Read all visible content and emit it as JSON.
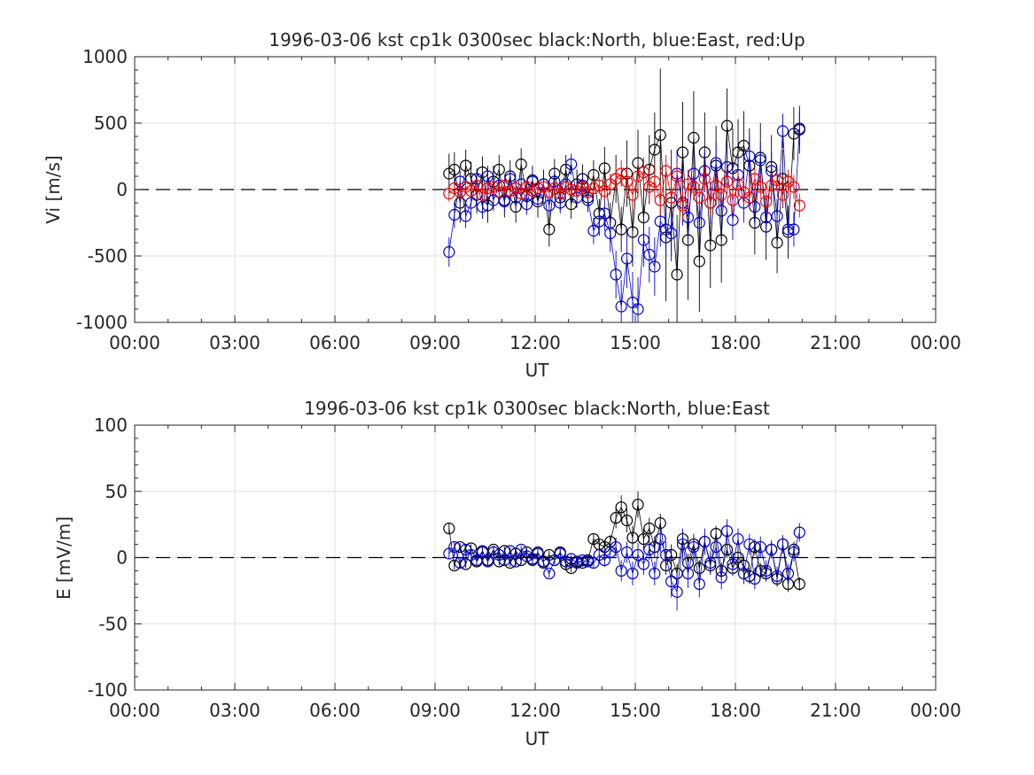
{
  "chart_data": [
    {
      "type": "scatter",
      "title": "1996-03-06 kst cp1k 0300sec black:North, blue:East, red:Up",
      "xlabel": "UT",
      "ylabel": "Vi [m/s]",
      "xlim_hours": [
        0,
        24
      ],
      "ylim": [
        -1000,
        1000
      ],
      "x_ticks": [
        "00:00",
        "03:00",
        "06:00",
        "09:00",
        "12:00",
        "15:00",
        "18:00",
        "21:00",
        "00:00"
      ],
      "y_ticks": [
        "1000",
        "500",
        "0",
        "-500",
        "-1000"
      ],
      "y_tick_values": [
        1000,
        500,
        0,
        -500,
        -1000
      ],
      "grid": true,
      "zero_line": "dashed",
      "series": [
        {
          "color": "#000000",
          "x": [
            9.42,
            9.58,
            9.75,
            9.92,
            10.08,
            10.25,
            10.42,
            10.58,
            10.75,
            10.92,
            11.08,
            11.25,
            11.42,
            11.58,
            11.75,
            11.92,
            12.08,
            12.25,
            12.42,
            12.58,
            12.75,
            12.92,
            13.08,
            13.25,
            13.42,
            13.58,
            13.75,
            13.92,
            14.08,
            14.25,
            14.42,
            14.58,
            14.75,
            14.92,
            15.08,
            15.25,
            15.42,
            15.58,
            15.75,
            15.92,
            16.08,
            16.25,
            16.42,
            16.58,
            16.75,
            16.92,
            17.08,
            17.25,
            17.42,
            17.58,
            17.75,
            17.92,
            18.08,
            18.25,
            18.42,
            18.58,
            18.75,
            18.92,
            19.08,
            19.25,
            19.42,
            19.58,
            19.75,
            19.92
          ],
          "y": [
            120,
            150,
            -100,
            180,
            80,
            -40,
            130,
            -120,
            60,
            150,
            -80,
            100,
            -130,
            190,
            -50,
            70,
            -90,
            40,
            -300,
            120,
            -60,
            150,
            -110,
            40,
            80,
            -60,
            110,
            -180,
            160,
            -250,
            80,
            -300,
            120,
            -320,
            200,
            -210,
            150,
            300,
            410,
            -360,
            -100,
            -640,
            280,
            -380,
            390,
            -540,
            280,
            -420,
            180,
            -380,
            480,
            160,
            280,
            330,
            180,
            -250,
            240,
            -280,
            170,
            -400,
            80,
            -320,
            420,
            450
          ],
          "err": [
            150,
            130,
            150,
            120,
            130,
            140,
            120,
            130,
            120,
            110,
            130,
            120,
            120,
            120,
            110,
            110,
            120,
            110,
            130,
            110,
            100,
            110,
            110,
            110,
            110,
            110,
            110,
            110,
            160,
            150,
            180,
            170,
            250,
            260,
            250,
            240,
            260,
            280,
            500,
            480,
            400,
            450,
            380,
            450,
            350,
            380,
            300,
            320,
            300,
            320,
            280,
            300,
            250,
            260,
            280,
            240,
            260,
            250,
            240,
            230,
            220,
            200,
            200,
            180
          ]
        },
        {
          "color": "#0000cc",
          "x": [
            9.42,
            9.58,
            9.75,
            9.92,
            10.08,
            10.25,
            10.42,
            10.58,
            10.75,
            10.92,
            11.08,
            11.25,
            11.42,
            11.58,
            11.75,
            11.92,
            12.08,
            12.25,
            12.42,
            12.58,
            12.75,
            12.92,
            13.08,
            13.25,
            13.42,
            13.58,
            13.75,
            13.92,
            14.08,
            14.25,
            14.42,
            14.58,
            14.75,
            14.92,
            15.08,
            15.25,
            15.42,
            15.58,
            15.75,
            15.92,
            16.08,
            16.25,
            16.42,
            16.58,
            16.75,
            16.92,
            17.08,
            17.25,
            17.42,
            17.58,
            17.75,
            17.92,
            18.08,
            18.25,
            18.42,
            18.58,
            18.75,
            18.92,
            19.08,
            19.25,
            19.42,
            19.58,
            19.75,
            19.92
          ],
          "y": [
            -470,
            -190,
            60,
            -200,
            -100,
            80,
            -130,
            100,
            -80,
            30,
            -90,
            80,
            -60,
            40,
            -110,
            60,
            -70,
            40,
            -120,
            60,
            -100,
            40,
            190,
            -60,
            30,
            -80,
            -310,
            -240,
            -180,
            -330,
            -640,
            -880,
            -520,
            -850,
            -900,
            -380,
            -490,
            -580,
            -240,
            -300,
            -330,
            120,
            -100,
            -210,
            120,
            -250,
            140,
            -100,
            200,
            -160,
            170,
            -230,
            110,
            -100,
            250,
            -130,
            220,
            -210,
            140,
            -200,
            440,
            -300,
            -300,
            460
          ],
          "err": [
            110,
            100,
            80,
            90,
            90,
            80,
            90,
            80,
            80,
            80,
            80,
            80,
            80,
            80,
            80,
            80,
            80,
            80,
            80,
            80,
            80,
            80,
            80,
            80,
            90,
            90,
            100,
            110,
            130,
            140,
            180,
            200,
            220,
            230,
            240,
            200,
            210,
            220,
            190,
            200,
            210,
            180,
            170,
            180,
            170,
            170,
            160,
            160,
            160,
            160,
            150,
            150,
            150,
            150,
            150,
            140,
            140,
            140,
            140,
            130,
            130,
            130,
            130,
            130
          ]
        },
        {
          "color": "#ee0000",
          "x": [
            9.42,
            9.58,
            9.75,
            9.92,
            10.08,
            10.25,
            10.42,
            10.58,
            10.75,
            10.92,
            11.08,
            11.25,
            11.42,
            11.58,
            11.75,
            11.92,
            12.08,
            12.25,
            12.42,
            12.58,
            12.75,
            12.92,
            13.08,
            13.25,
            13.42,
            13.58,
            13.75,
            13.92,
            14.08,
            14.25,
            14.42,
            14.58,
            14.75,
            14.92,
            15.08,
            15.25,
            15.42,
            15.58,
            15.75,
            15.92,
            16.08,
            16.25,
            16.42,
            16.58,
            16.75,
            16.92,
            17.08,
            17.25,
            17.42,
            17.58,
            17.75,
            17.92,
            18.08,
            18.25,
            18.42,
            18.58,
            18.75,
            18.92,
            19.08,
            19.25,
            19.42,
            19.58,
            19.75,
            19.92
          ],
          "y": [
            -30,
            10,
            -20,
            20,
            -10,
            30,
            -40,
            10,
            20,
            -20,
            30,
            -10,
            10,
            -30,
            20,
            -10,
            10,
            20,
            -20,
            10,
            -30,
            20,
            0,
            -10,
            20,
            -20,
            10,
            30,
            -10,
            40,
            80,
            120,
            60,
            -40,
            100,
            130,
            20,
            60,
            -80,
            140,
            -60,
            100,
            -120,
            40,
            20,
            -60,
            80,
            -100,
            30,
            -40,
            60,
            -80,
            40,
            -20,
            -60,
            80,
            20,
            -90,
            30,
            70,
            -40,
            60,
            20,
            -120
          ],
          "err": [
            60,
            50,
            50,
            50,
            50,
            50,
            50,
            50,
            50,
            50,
            50,
            50,
            50,
            50,
            50,
            50,
            50,
            50,
            50,
            50,
            50,
            50,
            50,
            50,
            50,
            50,
            60,
            60,
            70,
            80,
            90,
            100,
            100,
            110,
            110,
            110,
            110,
            120,
            120,
            120,
            120,
            110,
            110,
            110,
            100,
            100,
            100,
            100,
            100,
            100,
            100,
            100,
            100,
            90,
            90,
            90,
            90,
            90,
            90,
            90,
            90,
            90,
            90,
            90
          ]
        }
      ]
    },
    {
      "type": "scatter",
      "title": "1996-03-06 kst cp1k 0300sec black:North, blue:East",
      "xlabel": "UT",
      "ylabel": "E [mV/m]",
      "xlim_hours": [
        0,
        24
      ],
      "ylim": [
        -100,
        100
      ],
      "x_ticks": [
        "00:00",
        "03:00",
        "06:00",
        "09:00",
        "12:00",
        "15:00",
        "18:00",
        "21:00",
        "00:00"
      ],
      "y_ticks": [
        "100",
        "50",
        "0",
        "-50",
        "-100"
      ],
      "y_tick_values": [
        100,
        50,
        0,
        -50,
        -100
      ],
      "grid": true,
      "zero_line": "dashed",
      "series": [
        {
          "color": "#000000",
          "x": [
            9.42,
            9.58,
            9.75,
            9.92,
            10.08,
            10.25,
            10.42,
            10.58,
            10.75,
            10.92,
            11.08,
            11.25,
            11.42,
            11.58,
            11.75,
            11.92,
            12.08,
            12.25,
            12.42,
            12.58,
            12.75,
            12.92,
            13.08,
            13.25,
            13.42,
            13.58,
            13.75,
            13.92,
            14.08,
            14.25,
            14.42,
            14.58,
            14.75,
            14.92,
            15.08,
            15.25,
            15.42,
            15.58,
            15.75,
            15.92,
            16.08,
            16.25,
            16.42,
            16.58,
            16.75,
            16.92,
            17.08,
            17.25,
            17.42,
            17.58,
            17.75,
            17.92,
            18.08,
            18.25,
            18.42,
            18.58,
            18.75,
            18.92,
            19.08,
            19.25,
            19.42,
            19.58,
            19.75,
            19.92
          ],
          "y": [
            22,
            -6,
            8,
            -5,
            7,
            -3,
            4,
            -2,
            6,
            -3,
            5,
            -4,
            3,
            -2,
            4,
            -1,
            3,
            -3,
            2,
            -2,
            4,
            -5,
            -8,
            -3,
            -4,
            -2,
            14,
            10,
            8,
            12,
            30,
            38,
            28,
            15,
            40,
            14,
            22,
            8,
            26,
            -6,
            2,
            -12,
            14,
            -4,
            10,
            -8,
            12,
            -6,
            18,
            -10,
            6,
            -8,
            0,
            -6,
            -14,
            8,
            -10,
            -12,
            6,
            -16,
            10,
            -20,
            6,
            -20
          ],
          "err": [
            4,
            3,
            3,
            3,
            3,
            3,
            3,
            3,
            3,
            3,
            3,
            3,
            3,
            3,
            3,
            3,
            3,
            3,
            3,
            3,
            3,
            3,
            3,
            3,
            3,
            3,
            4,
            4,
            4,
            5,
            8,
            9,
            9,
            9,
            10,
            8,
            8,
            8,
            7,
            7,
            8,
            7,
            7,
            7,
            6,
            6,
            6,
            6,
            6,
            6,
            6,
            6,
            6,
            6,
            6,
            6,
            6,
            6,
            6,
            6,
            6,
            6,
            6,
            5
          ]
        },
        {
          "color": "#0000cc",
          "x": [
            9.42,
            9.58,
            9.75,
            9.92,
            10.08,
            10.25,
            10.42,
            10.58,
            10.75,
            10.92,
            11.08,
            11.25,
            11.42,
            11.58,
            11.75,
            11.92,
            12.08,
            12.25,
            12.42,
            12.58,
            12.75,
            12.92,
            13.08,
            13.25,
            13.42,
            13.58,
            13.75,
            13.92,
            14.08,
            14.25,
            14.42,
            14.58,
            14.75,
            14.92,
            15.08,
            15.25,
            15.42,
            15.58,
            15.75,
            15.92,
            16.08,
            16.25,
            16.42,
            16.58,
            16.75,
            16.92,
            17.08,
            17.25,
            17.42,
            17.58,
            17.75,
            17.92,
            18.08,
            18.25,
            18.42,
            18.58,
            18.75,
            18.92,
            19.08,
            19.25,
            19.42,
            19.58,
            19.75,
            19.92
          ],
          "y": [
            3,
            8,
            -4,
            6,
            2,
            -2,
            5,
            -3,
            4,
            2,
            -2,
            5,
            -3,
            6,
            1,
            -2,
            4,
            -4,
            -12,
            -2,
            3,
            -3,
            -1,
            -4,
            -2,
            -3,
            -4,
            2,
            -2,
            4,
            8,
            -10,
            4,
            -12,
            2,
            -5,
            6,
            -12,
            14,
            2,
            -18,
            -26,
            10,
            -12,
            8,
            -20,
            12,
            -4,
            8,
            -15,
            20,
            -5,
            14,
            -12,
            10,
            -16,
            8,
            -10,
            6,
            -14,
            10,
            -12,
            4,
            19
          ],
          "err": [
            4,
            4,
            4,
            4,
            3,
            3,
            3,
            3,
            3,
            3,
            3,
            3,
            3,
            3,
            3,
            3,
            3,
            3,
            3,
            3,
            3,
            3,
            3,
            3,
            3,
            3,
            4,
            4,
            5,
            5,
            7,
            8,
            8,
            9,
            9,
            8,
            8,
            9,
            10,
            10,
            12,
            14,
            12,
            11,
            10,
            10,
            10,
            9,
            9,
            9,
            9,
            9,
            8,
            8,
            8,
            8,
            8,
            8,
            7,
            7,
            7,
            7,
            7,
            7
          ]
        }
      ]
    }
  ]
}
